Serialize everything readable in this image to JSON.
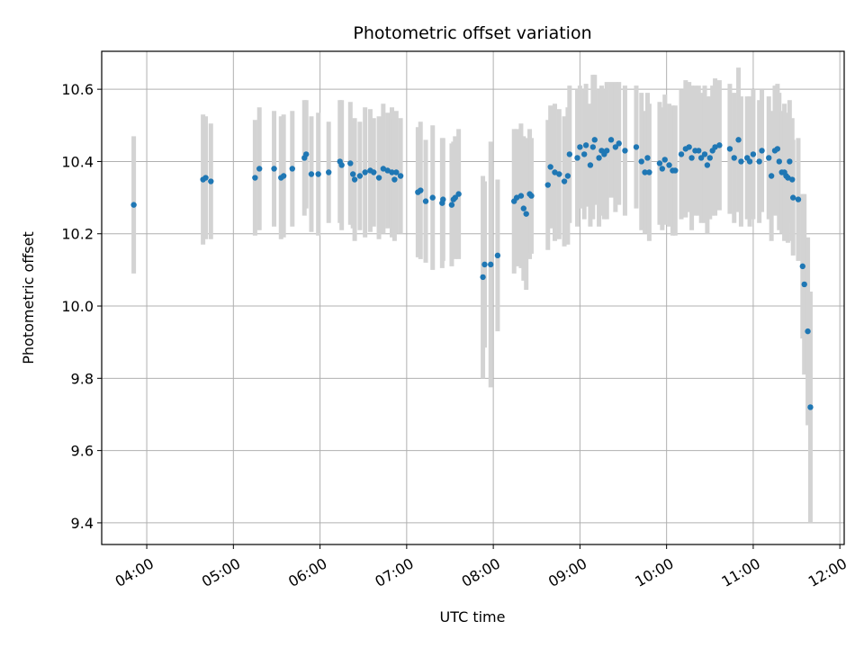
{
  "chart_data": {
    "type": "scatter",
    "title": "Photometric offset variation",
    "xlabel": "UTC time",
    "ylabel": "Photometric offset",
    "grid": true,
    "colors": {
      "marker": "#1f77b4",
      "errorbar": "#d3d3d3",
      "grid": "#b0b0b0"
    },
    "xlim": [
      3.48,
      12.05
    ],
    "ylim": [
      9.34,
      10.705
    ],
    "xticks": [
      {
        "value": 4,
        "label": "04:00"
      },
      {
        "value": 5,
        "label": "05:00"
      },
      {
        "value": 6,
        "label": "06:00"
      },
      {
        "value": 7,
        "label": "07:00"
      },
      {
        "value": 8,
        "label": "08:00"
      },
      {
        "value": 9,
        "label": "09:00"
      },
      {
        "value": 10,
        "label": "10:00"
      },
      {
        "value": 11,
        "label": "11:00"
      },
      {
        "value": 12,
        "label": "12:00"
      }
    ],
    "yticks": [
      {
        "value": 9.4,
        "label": "9.4"
      },
      {
        "value": 9.6,
        "label": "9.6"
      },
      {
        "value": 9.8,
        "label": "9.8"
      },
      {
        "value": 10.0,
        "label": "10.0"
      },
      {
        "value": 10.2,
        "label": "10.2"
      },
      {
        "value": 10.4,
        "label": "10.4"
      },
      {
        "value": 10.6,
        "label": "10.6"
      }
    ],
    "points": [
      [
        3.85,
        10.28,
        0.19
      ],
      [
        4.65,
        10.35,
        0.18
      ],
      [
        4.68,
        10.355,
        0.17
      ],
      [
        4.74,
        10.345,
        0.16
      ],
      [
        5.25,
        10.355,
        0.16
      ],
      [
        5.3,
        10.38,
        0.17
      ],
      [
        5.47,
        10.38,
        0.16
      ],
      [
        5.55,
        10.355,
        0.17
      ],
      [
        5.58,
        10.36,
        0.17
      ],
      [
        5.68,
        10.38,
        0.16
      ],
      [
        5.82,
        10.41,
        0.16
      ],
      [
        5.84,
        10.42,
        0.15
      ],
      [
        5.9,
        10.365,
        0.16
      ],
      [
        5.98,
        10.365,
        0.17
      ],
      [
        6.1,
        10.37,
        0.14
      ],
      [
        6.23,
        10.4,
        0.17
      ],
      [
        6.25,
        10.39,
        0.18
      ],
      [
        6.35,
        10.395,
        0.17
      ],
      [
        6.38,
        10.365,
        0.15
      ],
      [
        6.4,
        10.35,
        0.17
      ],
      [
        6.46,
        10.36,
        0.15
      ],
      [
        6.52,
        10.37,
        0.18
      ],
      [
        6.58,
        10.375,
        0.17
      ],
      [
        6.62,
        10.37,
        0.15
      ],
      [
        6.68,
        10.355,
        0.17
      ],
      [
        6.73,
        10.38,
        0.18
      ],
      [
        6.78,
        10.375,
        0.16
      ],
      [
        6.83,
        10.37,
        0.18
      ],
      [
        6.86,
        10.35,
        0.17
      ],
      [
        6.88,
        10.37,
        0.17
      ],
      [
        6.93,
        10.36,
        0.16
      ],
      [
        7.13,
        10.315,
        0.18
      ],
      [
        7.16,
        10.32,
        0.19
      ],
      [
        7.22,
        10.29,
        0.17
      ],
      [
        7.3,
        10.3,
        0.2
      ],
      [
        7.41,
        10.285,
        0.18
      ],
      [
        7.42,
        10.295,
        0.17
      ],
      [
        7.52,
        10.28,
        0.17
      ],
      [
        7.54,
        10.295,
        0.16
      ],
      [
        7.56,
        10.3,
        0.17
      ],
      [
        7.6,
        10.31,
        0.18
      ],
      [
        7.88,
        10.08,
        0.28
      ],
      [
        7.9,
        10.115,
        0.23
      ],
      [
        7.97,
        10.115,
        0.34
      ],
      [
        8.05,
        10.14,
        0.21
      ],
      [
        8.24,
        10.29,
        0.2
      ],
      [
        8.27,
        10.3,
        0.19
      ],
      [
        8.32,
        10.305,
        0.2
      ],
      [
        8.35,
        10.27,
        0.2
      ],
      [
        8.38,
        10.255,
        0.21
      ],
      [
        8.42,
        10.31,
        0.18
      ],
      [
        8.44,
        10.305,
        0.16
      ],
      [
        8.63,
        10.335,
        0.18
      ],
      [
        8.66,
        10.385,
        0.17
      ],
      [
        8.71,
        10.37,
        0.19
      ],
      [
        8.76,
        10.365,
        0.18
      ],
      [
        8.82,
        10.345,
        0.18
      ],
      [
        8.86,
        10.36,
        0.19
      ],
      [
        8.88,
        10.42,
        0.19
      ],
      [
        8.97,
        10.41,
        0.19
      ],
      [
        9.0,
        10.44,
        0.17
      ],
      [
        9.05,
        10.42,
        0.18
      ],
      [
        9.07,
        10.445,
        0.17
      ],
      [
        9.12,
        10.39,
        0.17
      ],
      [
        9.15,
        10.44,
        0.2
      ],
      [
        9.17,
        10.46,
        0.18
      ],
      [
        9.22,
        10.41,
        0.19
      ],
      [
        9.25,
        10.43,
        0.18
      ],
      [
        9.28,
        10.42,
        0.18
      ],
      [
        9.31,
        10.43,
        0.19
      ],
      [
        9.36,
        10.46,
        0.16
      ],
      [
        9.41,
        10.44,
        0.18
      ],
      [
        9.45,
        10.45,
        0.17
      ],
      [
        9.52,
        10.43,
        0.18
      ],
      [
        9.65,
        10.44,
        0.17
      ],
      [
        9.71,
        10.4,
        0.19
      ],
      [
        9.75,
        10.37,
        0.17
      ],
      [
        9.78,
        10.41,
        0.18
      ],
      [
        9.8,
        10.37,
        0.19
      ],
      [
        9.92,
        10.395,
        0.17
      ],
      [
        9.95,
        10.38,
        0.17
      ],
      [
        9.98,
        10.405,
        0.18
      ],
      [
        10.03,
        10.39,
        0.17
      ],
      [
        10.07,
        10.375,
        0.18
      ],
      [
        10.1,
        10.375,
        0.18
      ],
      [
        10.17,
        10.42,
        0.18
      ],
      [
        10.22,
        10.435,
        0.19
      ],
      [
        10.26,
        10.44,
        0.18
      ],
      [
        10.29,
        10.41,
        0.2
      ],
      [
        10.33,
        10.43,
        0.18
      ],
      [
        10.37,
        10.43,
        0.18
      ],
      [
        10.4,
        10.41,
        0.18
      ],
      [
        10.44,
        10.42,
        0.19
      ],
      [
        10.47,
        10.39,
        0.19
      ],
      [
        10.5,
        10.41,
        0.17
      ],
      [
        10.53,
        10.43,
        0.18
      ],
      [
        10.56,
        10.44,
        0.19
      ],
      [
        10.61,
        10.445,
        0.18
      ],
      [
        10.73,
        10.435,
        0.18
      ],
      [
        10.78,
        10.41,
        0.18
      ],
      [
        10.83,
        10.46,
        0.2
      ],
      [
        10.86,
        10.4,
        0.18
      ],
      [
        10.93,
        10.41,
        0.17
      ],
      [
        10.96,
        10.4,
        0.18
      ],
      [
        11.0,
        10.42,
        0.18
      ],
      [
        11.07,
        10.4,
        0.17
      ],
      [
        11.1,
        10.43,
        0.17
      ],
      [
        11.18,
        10.41,
        0.17
      ],
      [
        11.21,
        10.36,
        0.18
      ],
      [
        11.25,
        10.43,
        0.18
      ],
      [
        11.28,
        10.435,
        0.18
      ],
      [
        11.3,
        10.4,
        0.19
      ],
      [
        11.33,
        10.37,
        0.17
      ],
      [
        11.36,
        10.37,
        0.19
      ],
      [
        11.38,
        10.36,
        0.17
      ],
      [
        11.4,
        10.355,
        0.18
      ],
      [
        11.42,
        10.4,
        0.17
      ],
      [
        11.45,
        10.35,
        0.17
      ],
      [
        11.46,
        10.3,
        0.16
      ],
      [
        11.52,
        10.295,
        0.17
      ],
      [
        11.57,
        10.11,
        0.2
      ],
      [
        11.59,
        10.06,
        0.25
      ],
      [
        11.63,
        9.93,
        0.26
      ],
      [
        11.66,
        9.72,
        0.32
      ]
    ]
  }
}
